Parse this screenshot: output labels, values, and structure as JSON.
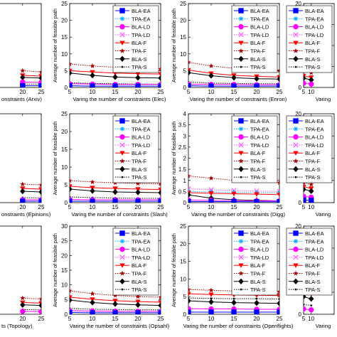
{
  "figure": {
    "legend_entries": [
      {
        "name": "BLA-EA",
        "color": "#0000ff",
        "marker": "square",
        "dash": "solid"
      },
      {
        "name": "TPA-EA",
        "color": "#00aaff",
        "marker": "asterisk",
        "dash": "dotted"
      },
      {
        "name": "BLA-LD",
        "color": "#ff00ff",
        "marker": "circle",
        "dash": "solid"
      },
      {
        "name": "TPA-LD",
        "color": "#ff55ff",
        "marker": "cross",
        "dash": "dotted"
      },
      {
        "name": "BLA-F",
        "color": "#ff0000",
        "marker": "triangle-down",
        "dash": "solid"
      },
      {
        "name": "TPA-F",
        "color": "#aa0000",
        "marker": "star",
        "dash": "dotted"
      },
      {
        "name": "BLA-S",
        "color": "#000000",
        "marker": "diamond",
        "dash": "solid"
      },
      {
        "name": "TPA-S",
        "color": "#000000",
        "marker": "dot",
        "dash": "dotted"
      }
    ]
  },
  "chart_data": [
    {
      "id": "r0c0",
      "type": "line",
      "xlabel": "onstraints (Arxiv)",
      "x": [
        20,
        25
      ],
      "ylim": [
        0,
        25
      ],
      "yticks": [],
      "xticks": [
        "20",
        "25"
      ],
      "legend": false,
      "ylabel": "",
      "series": [
        {
          "name": "TPA-F",
          "values": [
            5,
            4.6
          ]
        },
        {
          "name": "BLA-F",
          "values": [
            3.6,
            3.4
          ]
        },
        {
          "name": "BLA-S",
          "values": [
            3,
            2.8
          ]
        },
        {
          "name": "BLA-LD",
          "values": [
            1.6,
            1.5
          ]
        },
        {
          "name": "TPA-S",
          "values": [
            1,
            1
          ]
        },
        {
          "name": "BLA-EA",
          "values": [
            0.5,
            0.5
          ]
        }
      ]
    },
    {
      "id": "r0c1",
      "type": "line",
      "xlabel": "Varing the number of constraints (Elec)",
      "ylabel": "Average number of feasible path",
      "x": [
        5,
        10,
        15,
        20,
        25
      ],
      "ylim": [
        0,
        25
      ],
      "yticks": [
        0,
        5,
        10,
        15,
        20,
        25
      ],
      "xticks": [
        "5",
        "10",
        "15",
        "20",
        "25"
      ],
      "legend": true,
      "series": [
        {
          "name": "TPA-F",
          "values": [
            7,
            6.4,
            6,
            5.7,
            5.5
          ]
        },
        {
          "name": "BLA-F",
          "values": [
            5,
            4.6,
            4.3,
            4.1,
            4
          ]
        },
        {
          "name": "BLA-S",
          "values": [
            4.3,
            3.6,
            3.1,
            2.9,
            2.8
          ]
        },
        {
          "name": "TPA-S",
          "values": [
            1.4,
            1.2,
            1.1,
            1,
            1
          ]
        },
        {
          "name": "BLA-LD",
          "values": [
            1.1,
            1,
            0.9,
            0.9,
            0.9
          ]
        },
        {
          "name": "BLA-EA",
          "values": [
            0.5,
            0.4,
            0.4,
            0.4,
            0.4
          ]
        }
      ]
    },
    {
      "id": "r0c2",
      "type": "line",
      "xlabel": "Varing the number of constraints (Enron)",
      "ylabel": "Average number of feasible path",
      "x": [
        5,
        10,
        15,
        20,
        25
      ],
      "ylim": [
        0,
        25
      ],
      "yticks": [
        0,
        5,
        10,
        15,
        20,
        25
      ],
      "xticks": [
        "5",
        "10",
        "15",
        "20",
        "25"
      ],
      "legend": true,
      "series": [
        {
          "name": "TPA-F",
          "values": [
            7.5,
            6.4,
            5.7,
            5.3,
            5
          ]
        },
        {
          "name": "BLA-F",
          "values": [
            5.2,
            4.2,
            3.6,
            3.3,
            3.1
          ]
        },
        {
          "name": "BLA-S",
          "values": [
            4.4,
            3.5,
            2.9,
            2.6,
            2.5
          ]
        },
        {
          "name": "TPA-S",
          "values": [
            1.6,
            1.3,
            1.2,
            1.1,
            1.1
          ]
        },
        {
          "name": "BLA-LD",
          "values": [
            1,
            0.9,
            0.9,
            0.8,
            0.8
          ]
        },
        {
          "name": "BLA-EA",
          "values": [
            0.5,
            0.4,
            0.4,
            0.4,
            0.4
          ]
        }
      ]
    },
    {
      "id": "r0c3",
      "type": "line",
      "xlabel": "Varing",
      "ylabel": "",
      "x": [
        5,
        10
      ],
      "ylim": [
        0,
        20
      ],
      "yticks": [
        0,
        5,
        10,
        15,
        20
      ],
      "xticks": [
        "5",
        "10"
      ],
      "legend": true,
      "series": [
        {
          "name": "TPA-F",
          "values": [
            4,
            3.5
          ]
        },
        {
          "name": "BLA-F",
          "values": [
            2.8,
            2.4
          ]
        },
        {
          "name": "BLA-S",
          "values": [
            2.2,
            1.8
          ]
        },
        {
          "name": "BLA-LD",
          "values": [
            1,
            0.8
          ]
        }
      ]
    },
    {
      "id": "r1c0",
      "type": "line",
      "xlabel": "onstraints (Epinions)",
      "x": [
        20,
        25
      ],
      "ylim": [
        0,
        25
      ],
      "yticks": [],
      "xticks": [
        "20",
        "25"
      ],
      "legend": false,
      "ylabel": "",
      "series": [
        {
          "name": "TPA-F",
          "values": [
            5.2,
            5
          ]
        },
        {
          "name": "BLA-F",
          "values": [
            4,
            3.8
          ]
        },
        {
          "name": "BLA-S",
          "values": [
            3.2,
            3
          ]
        },
        {
          "name": "TPA-S",
          "values": [
            1.4,
            1.3
          ]
        },
        {
          "name": "BLA-LD",
          "values": [
            0.8,
            0.8
          ]
        },
        {
          "name": "BLA-EA",
          "values": [
            0.4,
            0.4
          ]
        }
      ]
    },
    {
      "id": "r1c1",
      "type": "line",
      "xlabel": "Varing the number of constraints (Slash)",
      "ylabel": "Average number of feasible path",
      "x": [
        5,
        10,
        15,
        20,
        25
      ],
      "ylim": [
        0,
        25
      ],
      "yticks": [
        0,
        5,
        10,
        15,
        20,
        25
      ],
      "xticks": [
        "5",
        "10",
        "15",
        "20",
        "25"
      ],
      "legend": true,
      "series": [
        {
          "name": "TPA-F",
          "values": [
            6.2,
            5.8,
            5.6,
            5.4,
            5.3
          ]
        },
        {
          "name": "BLA-F",
          "values": [
            4.6,
            4.2,
            4,
            3.8,
            3.7
          ]
        },
        {
          "name": "BLA-S",
          "values": [
            3.8,
            3.3,
            3,
            2.9,
            2.8
          ]
        },
        {
          "name": "TPA-S",
          "values": [
            1.6,
            1.4,
            1.3,
            1.2,
            1.2
          ]
        },
        {
          "name": "BLA-LD",
          "values": [
            0.9,
            0.8,
            0.8,
            0.8,
            0.8
          ]
        },
        {
          "name": "BLA-EA",
          "values": [
            0.4,
            0.4,
            0.4,
            0.4,
            0.4
          ]
        }
      ]
    },
    {
      "id": "r1c2",
      "type": "line",
      "xlabel": "Varing the number of constraints (Digg)",
      "ylabel": "Average number of feasible path",
      "x": [
        5,
        10,
        15,
        20,
        25
      ],
      "ylim": [
        0,
        4
      ],
      "yticks": [
        0,
        0.5,
        1,
        1.5,
        2,
        2.5,
        3,
        3.5,
        4
      ],
      "xticks": [
        "5",
        "10",
        "15",
        "20",
        "25"
      ],
      "legend": true,
      "series": [
        {
          "name": "TPA-F",
          "values": [
            1.2,
            1.1,
            1,
            0.95,
            0.9
          ]
        },
        {
          "name": "TPA-LD",
          "values": [
            0.62,
            0.58,
            0.55,
            0.52,
            0.5
          ]
        },
        {
          "name": "TPA-EA",
          "values": [
            0.5,
            0.48,
            0.46,
            0.45,
            0.44
          ]
        },
        {
          "name": "BLA-F",
          "values": [
            0.45,
            0.42,
            0.4,
            0.38,
            0.36
          ]
        },
        {
          "name": "BLA-S",
          "values": [
            0.35,
            0.2,
            0.13,
            0.1,
            0.08
          ]
        },
        {
          "name": "BLA-LD",
          "values": [
            0.12,
            0.1,
            0.09,
            0.08,
            0.08
          ]
        },
        {
          "name": "BLA-EA",
          "values": [
            0.05,
            0.05,
            0.05,
            0.04,
            0.04
          ]
        }
      ]
    },
    {
      "id": "r1c3",
      "type": "line",
      "xlabel": "Varing",
      "ylabel": "",
      "x": [
        5,
        10
      ],
      "ylim": [
        0,
        20
      ],
      "yticks": [
        0,
        5,
        10,
        15,
        20
      ],
      "xticks": [
        "5",
        "10"
      ],
      "legend": true,
      "series": [
        {
          "name": "TPA-F",
          "values": [
            4.5,
            4.1
          ]
        },
        {
          "name": "BLA-F",
          "values": [
            3.6,
            3.2
          ]
        },
        {
          "name": "BLA-S",
          "values": [
            3,
            2.6
          ]
        },
        {
          "name": "BLA-LD",
          "values": [
            1.4,
            1.2
          ]
        },
        {
          "name": "BLA-EA",
          "values": [
            0.6,
            0.5
          ]
        }
      ]
    },
    {
      "id": "r2c0",
      "type": "line",
      "xlabel": "ts (Topology)",
      "x": [
        20,
        25
      ],
      "ylim": [
        0,
        30
      ],
      "yticks": [],
      "xticks": [
        "20",
        "25"
      ],
      "legend": false,
      "ylabel": "",
      "series": [
        {
          "name": "TPA-F",
          "values": [
            5.5,
            5.2
          ]
        },
        {
          "name": "BLA-F",
          "values": [
            4,
            3.8
          ]
        },
        {
          "name": "BLA-S",
          "values": [
            3.2,
            3
          ]
        },
        {
          "name": "TPA-S",
          "values": [
            1.6,
            1.5
          ]
        },
        {
          "name": "BLA-LD",
          "values": [
            1,
            0.9
          ]
        }
      ]
    },
    {
      "id": "r2c1",
      "type": "line",
      "xlabel": "Varing the number of constraints (Opsahl)",
      "ylabel": "Average number of feasible path",
      "x": [
        5,
        10,
        15,
        20,
        25
      ],
      "ylim": [
        0,
        30
      ],
      "yticks": [
        0,
        5,
        10,
        15,
        20,
        25,
        30
      ],
      "xticks": [
        "5",
        "10",
        "15",
        "20",
        "25"
      ],
      "legend": true,
      "series": [
        {
          "name": "TPA-F",
          "values": [
            8,
            7,
            6.4,
            6,
            5.8
          ]
        },
        {
          "name": "BLA-F",
          "values": [
            5.8,
            5.1,
            4.6,
            4.3,
            4.1
          ]
        },
        {
          "name": "BLA-S",
          "values": [
            4.8,
            4,
            3.5,
            3.2,
            3
          ]
        },
        {
          "name": "TPA-S",
          "values": [
            2,
            1.7,
            1.6,
            1.5,
            1.5
          ]
        },
        {
          "name": "BLA-LD",
          "values": [
            1.2,
            1.1,
            1,
            1,
            1
          ]
        },
        {
          "name": "BLA-EA",
          "values": [
            0.6,
            0.5,
            0.5,
            0.5,
            0.5
          ]
        }
      ]
    },
    {
      "id": "r2c2",
      "type": "line",
      "xlabel": "Varing the number of constraints (Openflights)",
      "ylabel": "Average number of feasible path",
      "x": [
        5,
        10,
        15,
        20,
        25
      ],
      "ylim": [
        0,
        25
      ],
      "yticks": [
        0,
        5,
        10,
        15,
        20,
        25
      ],
      "xticks": [
        "5",
        "10",
        "15",
        "20",
        "25"
      ],
      "legend": true,
      "series": [
        {
          "name": "TPA-F",
          "values": [
            7,
            6.8,
            6.6,
            6.5,
            6.4
          ]
        },
        {
          "name": "BLA-F",
          "values": [
            5.8,
            5.6,
            5.5,
            5.4,
            5.3
          ]
        },
        {
          "name": "TPA-S",
          "values": [
            4.6,
            4.5,
            4.4,
            4.4,
            4.3
          ]
        },
        {
          "name": "BLA-S",
          "values": [
            3.8,
            3.5,
            3.3,
            3.2,
            3.1
          ]
        },
        {
          "name": "BLA-LD",
          "values": [
            1.6,
            1.5,
            1.5,
            1.4,
            1.4
          ]
        },
        {
          "name": "BLA-EA",
          "values": [
            0.6,
            0.6,
            0.6,
            0.6,
            0.6
          ]
        }
      ]
    },
    {
      "id": "r2c3",
      "type": "line",
      "xlabel": "Varing",
      "ylabel": "",
      "x": [
        5,
        10
      ],
      "ylim": [
        0,
        20
      ],
      "yticks": [
        0,
        5,
        10,
        15,
        20
      ],
      "xticks": [
        "5",
        "10"
      ],
      "legend": true,
      "series": [
        {
          "name": "TPA-F",
          "values": [
            6.6,
            6
          ]
        },
        {
          "name": "BLA-F",
          "values": [
            5,
            4.6
          ]
        },
        {
          "name": "BLA-S",
          "values": [
            4,
            3.5
          ]
        },
        {
          "name": "TPA-S",
          "values": [
            2.2,
            2
          ]
        },
        {
          "name": "BLA-LD",
          "values": [
            1.2,
            1
          ]
        }
      ]
    }
  ]
}
